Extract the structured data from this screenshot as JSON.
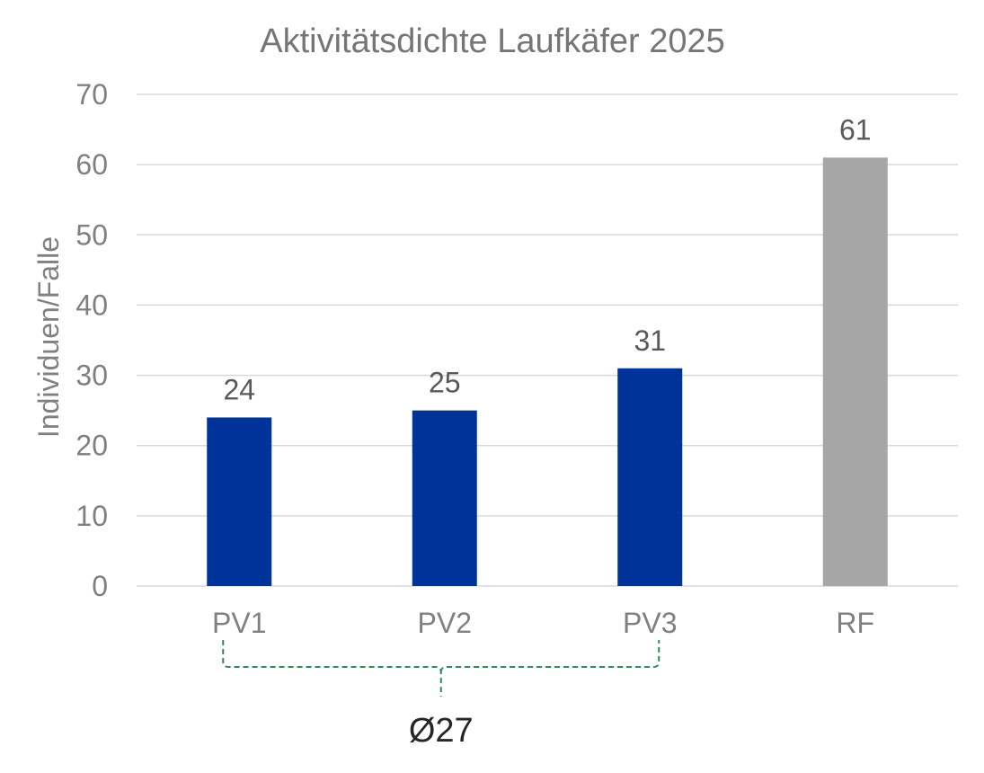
{
  "chart_data": {
    "type": "bar",
    "title": "Aktivitätsdichte Laufkäfer 2025",
    "ylabel": "Individuen/Falle",
    "xlabel": "",
    "categories": [
      "PV1",
      "PV2",
      "PV3",
      "RF"
    ],
    "values": [
      24,
      25,
      31,
      61
    ],
    "bar_colors": [
      "#003399",
      "#003399",
      "#003399",
      "#a6a6a6"
    ],
    "ylim": [
      0,
      70
    ],
    "yticks": [
      0,
      10,
      20,
      30,
      40,
      50,
      60,
      70
    ],
    "grid": true,
    "legend": "none",
    "annotation": {
      "text": "Ø27",
      "spans": [
        "PV1",
        "PV3"
      ],
      "color": "#2e8b57"
    }
  }
}
